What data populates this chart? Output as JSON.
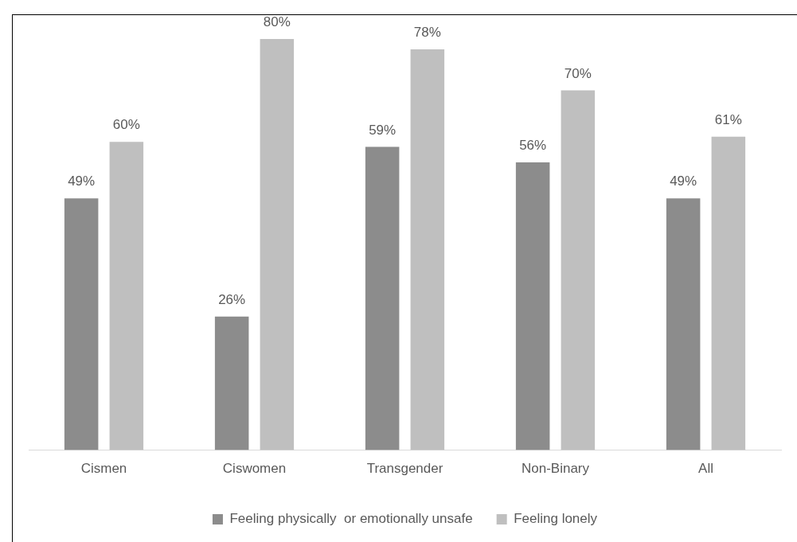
{
  "chart_data": {
    "type": "bar",
    "categories": [
      "Cismen",
      "Ciswomen",
      "Transgender",
      "Non-Binary",
      "All"
    ],
    "series": [
      {
        "name": "Feeling physically  or emotionally unsafe",
        "color": "#8c8c8c",
        "values": [
          49,
          26,
          59,
          56,
          49
        ],
        "value_labels": [
          "49%",
          "26%",
          "59%",
          "56%",
          "49%"
        ]
      },
      {
        "name": "Feeling lonely",
        "color": "#bfbfbf",
        "values": [
          60,
          80,
          78,
          70,
          61
        ],
        "value_labels": [
          "60%",
          "80%",
          "78%",
          "70%",
          "61%"
        ]
      }
    ],
    "legend": "bottom",
    "grid": false,
    "tick_labels": "x"
  }
}
